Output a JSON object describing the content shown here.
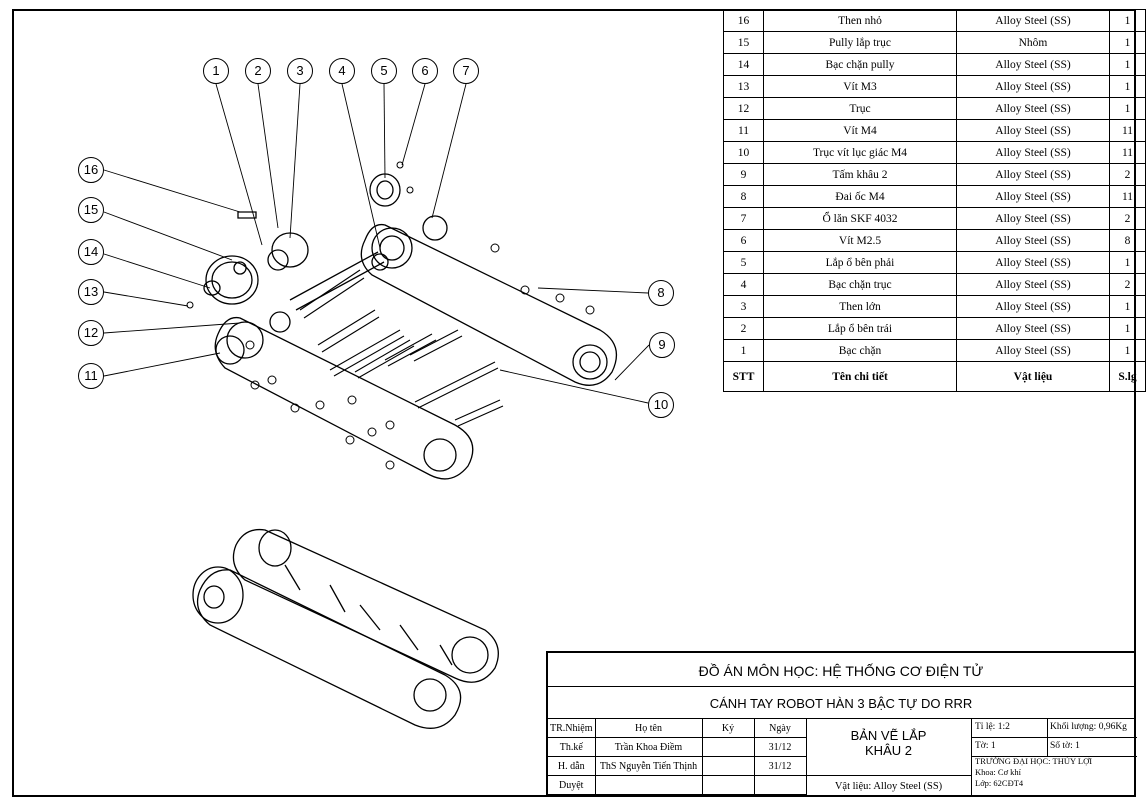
{
  "bom": {
    "headers": [
      "STT",
      "Tên chi tiết",
      "Vật liệu",
      "S.lg"
    ],
    "rows": [
      {
        "stt": "16",
        "name": "Then nhỏ",
        "material": "Alloy Steel (SS)",
        "qty": "1"
      },
      {
        "stt": "15",
        "name": "Pully lắp trục",
        "material": "Nhôm",
        "qty": "1"
      },
      {
        "stt": "14",
        "name": "Bạc chặn pully",
        "material": "Alloy Steel (SS)",
        "qty": "1"
      },
      {
        "stt": "13",
        "name": "Vít M3",
        "material": "Alloy Steel (SS)",
        "qty": "1"
      },
      {
        "stt": "12",
        "name": "Trục",
        "material": "Alloy Steel (SS)",
        "qty": "1"
      },
      {
        "stt": "11",
        "name": "Vít M4",
        "material": "Alloy Steel (SS)",
        "qty": "11"
      },
      {
        "stt": "10",
        "name": "Trục vít lục giác M4",
        "material": "Alloy Steel (SS)",
        "qty": "11"
      },
      {
        "stt": "9",
        "name": "Tấm khâu 2",
        "material": "Alloy Steel (SS)",
        "qty": "2"
      },
      {
        "stt": "8",
        "name": "Đai ốc M4",
        "material": "Alloy Steel (SS)",
        "qty": "11"
      },
      {
        "stt": "7",
        "name": "Ổ lăn SKF 4032",
        "material": "Alloy Steel (SS)",
        "qty": "2"
      },
      {
        "stt": "6",
        "name": "Vít M2.5",
        "material": "Alloy Steel (SS)",
        "qty": "8"
      },
      {
        "stt": "5",
        "name": "Lắp ổ bên phải",
        "material": "Alloy Steel (SS)",
        "qty": "1"
      },
      {
        "stt": "4",
        "name": "Bạc chặn trục",
        "material": "Alloy Steel (SS)",
        "qty": "2"
      },
      {
        "stt": "3",
        "name": "Then lớn",
        "material": "Alloy Steel (SS)",
        "qty": "1"
      },
      {
        "stt": "2",
        "name": "Lắp ổ bên trái",
        "material": "Alloy Steel (SS)",
        "qty": "1"
      },
      {
        "stt": "1",
        "name": "Bạc chặn",
        "material": "Alloy Steel (SS)",
        "qty": "1"
      }
    ]
  },
  "balloons": [
    "1",
    "2",
    "3",
    "4",
    "5",
    "6",
    "7",
    "8",
    "9",
    "10",
    "11",
    "12",
    "13",
    "14",
    "15",
    "16"
  ],
  "title_block": {
    "project": "ĐỒ ÁN MÔN HỌC: HỆ THỐNG CƠ ĐIỆN TỬ",
    "title": "CÁNH TAY ROBOT HÀN 3 BẬC TỰ DO RRR",
    "col_role": "TR.Nhiệm",
    "col_name": "Họ tên",
    "col_sign": "Ký",
    "col_date": "Ngày",
    "rows": [
      {
        "role": "Th.kế",
        "name": "Trần Khoa Điềm",
        "date": "31/12"
      },
      {
        "role": "H. dẫn",
        "name": "ThS Nguyễn Tiến Thịnh",
        "date": "31/12"
      },
      {
        "role": "Duyệt",
        "name": "",
        "date": ""
      }
    ],
    "drawing_type": "BẢN VẼ LẮP",
    "drawing_name": "KHÂU 2",
    "material": "Vật liệu: Alloy Steel (SS)",
    "scale": "Tỉ lệ: 1:2",
    "mass": "Khối lượng: 0,96Kg",
    "sheet": "Tờ: 1",
    "sheets": "Số tờ: 1",
    "school": "TRƯỜNG ĐẠI HỌC: THỦY LỢI",
    "faculty": "Khoa: Cơ khí",
    "class": "Lớp: 62CĐT4"
  }
}
